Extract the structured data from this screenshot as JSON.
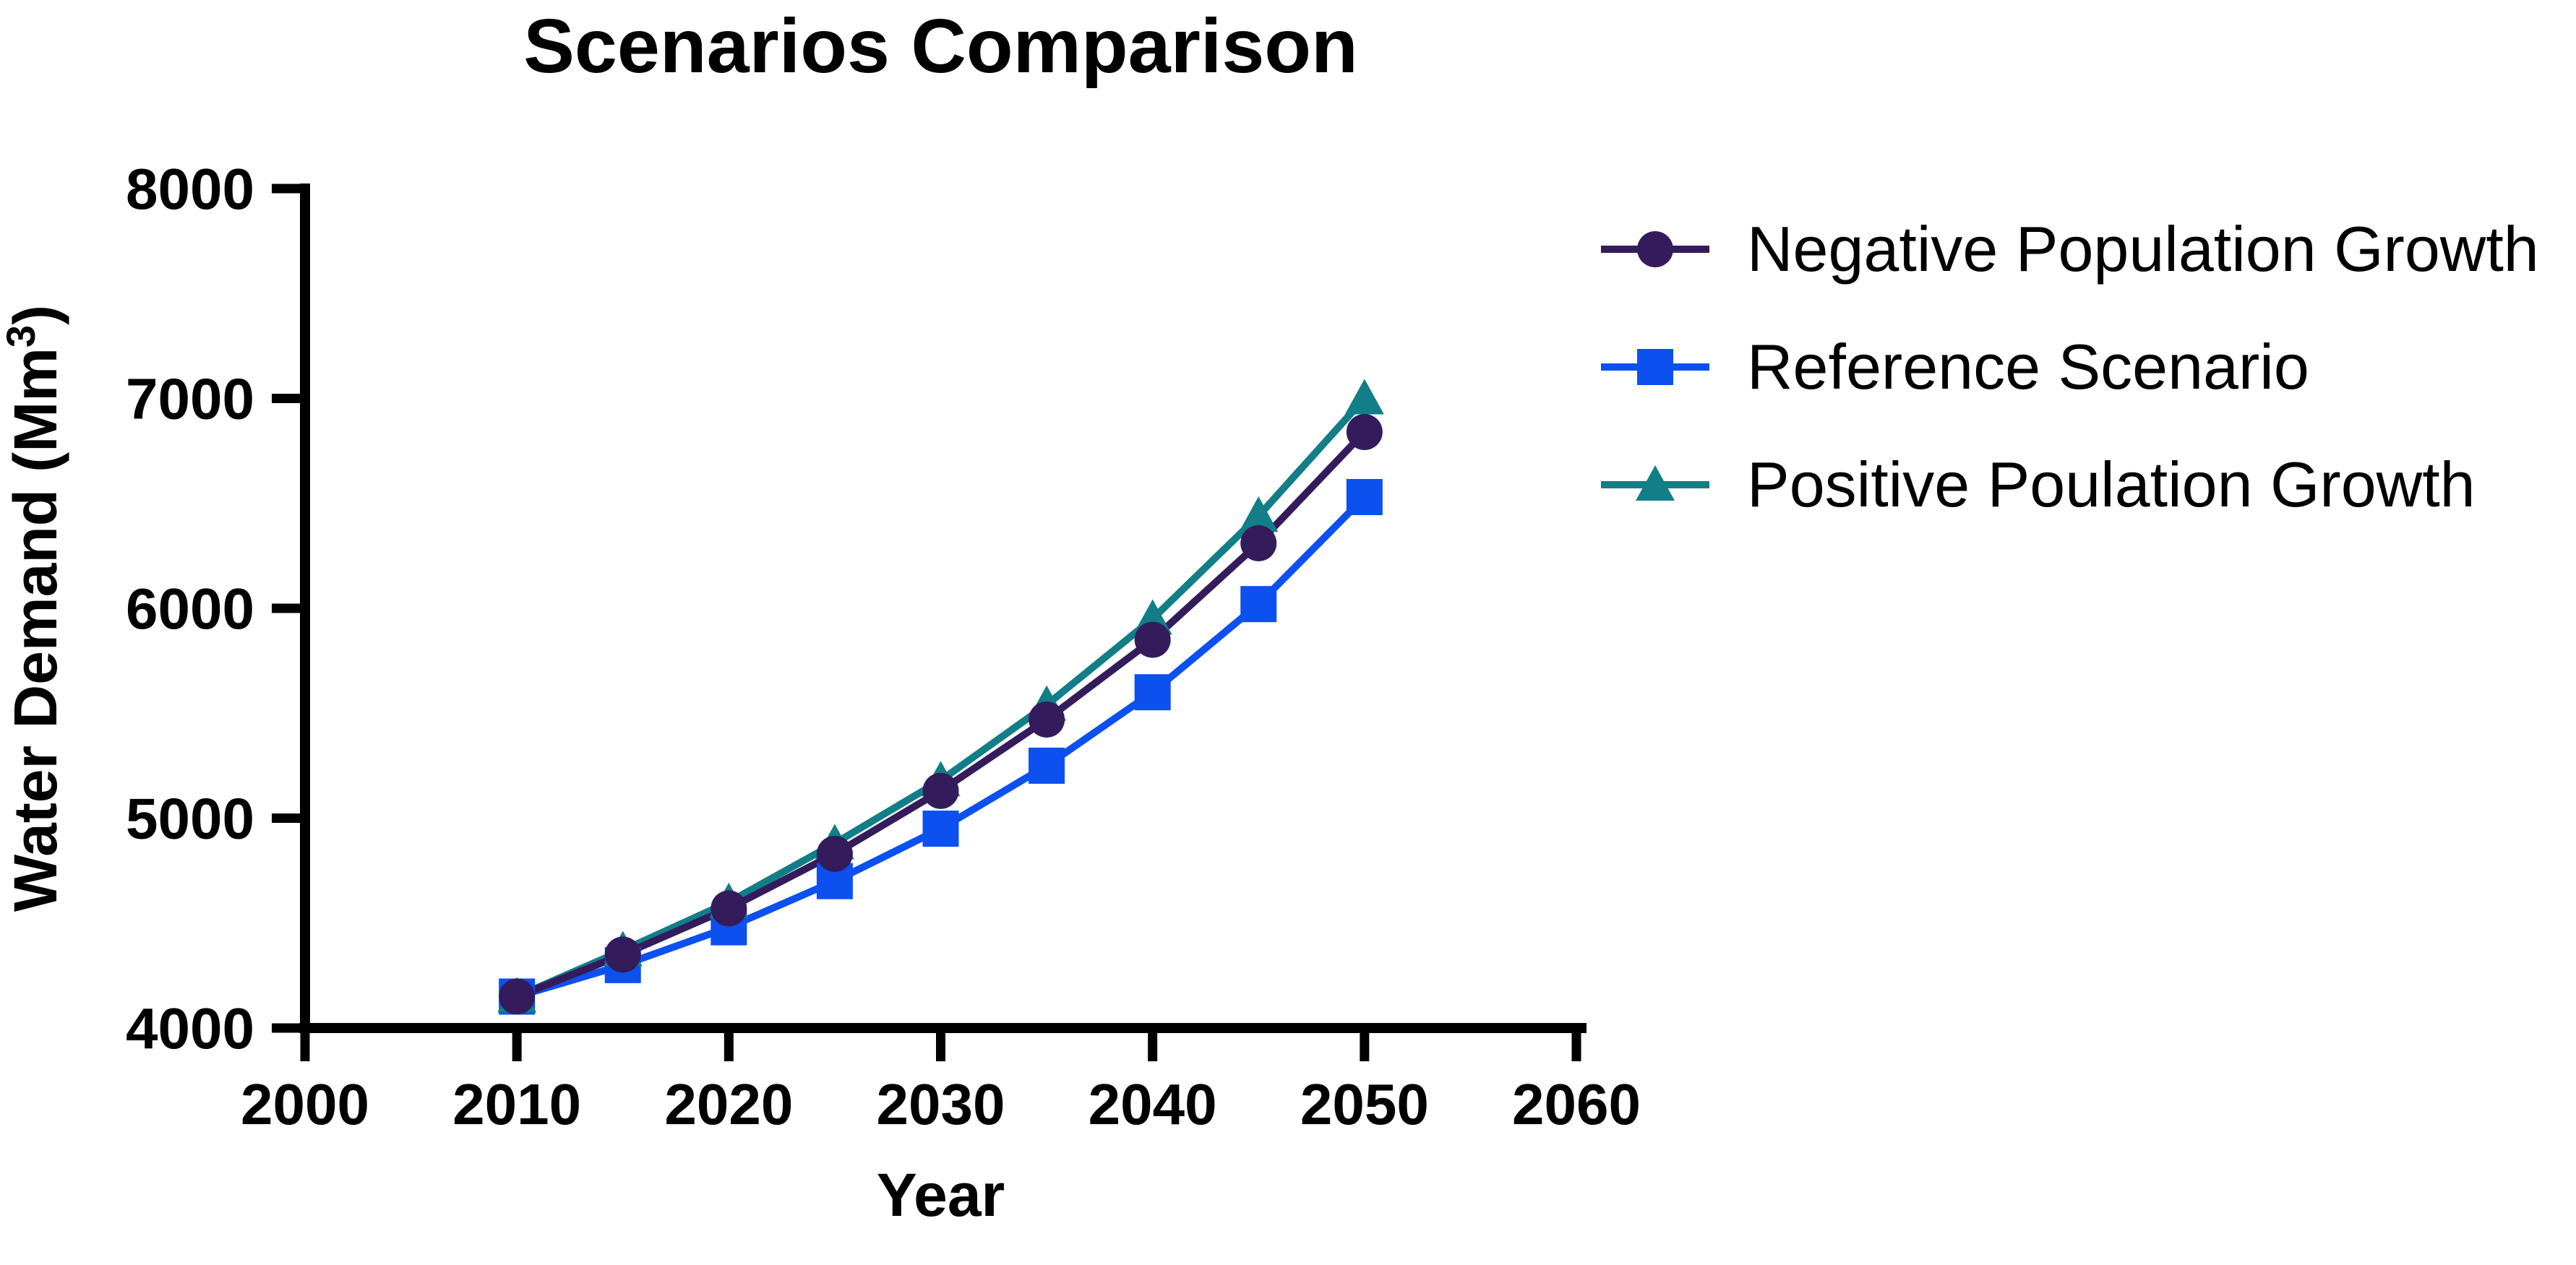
{
  "chart_data": {
    "type": "line",
    "title": "Scenarios Comparison",
    "xlabel": "Year",
    "ylabel": {
      "text": "Water Demand (Mm³)",
      "main": "Water Demand (Mm",
      "sup": "3",
      "tail": ")"
    },
    "xlim": [
      2000,
      2060
    ],
    "ylim": [
      4000,
      8000
    ],
    "x_ticks": [
      2000,
      2010,
      2020,
      2030,
      2040,
      2050,
      2060
    ],
    "y_ticks": [
      8000,
      7000,
      6000,
      5000,
      4000
    ],
    "grid": false,
    "legend_position": "right",
    "x": [
      2010,
      2015,
      2020,
      2025,
      2030,
      2035,
      2040,
      2045,
      2050
    ],
    "series": [
      {
        "name": "Negative Population Growth",
        "marker": "circle",
        "color": "#341c5c",
        "values": [
          4150,
          4350,
          4570,
          4830,
          5130,
          5470,
          5850,
          6310,
          6840
        ]
      },
      {
        "name": "Reference Scenario",
        "marker": "square",
        "color": "#0d50f0",
        "values": [
          4150,
          4300,
          4480,
          4700,
          4950,
          5250,
          5600,
          6020,
          6530
        ]
      },
      {
        "name": "Positive Poulation Growth",
        "marker": "triangle",
        "color": "#127e87",
        "values": [
          4150,
          4370,
          4600,
          4880,
          5180,
          5540,
          5950,
          6440,
          7000
        ]
      }
    ]
  }
}
